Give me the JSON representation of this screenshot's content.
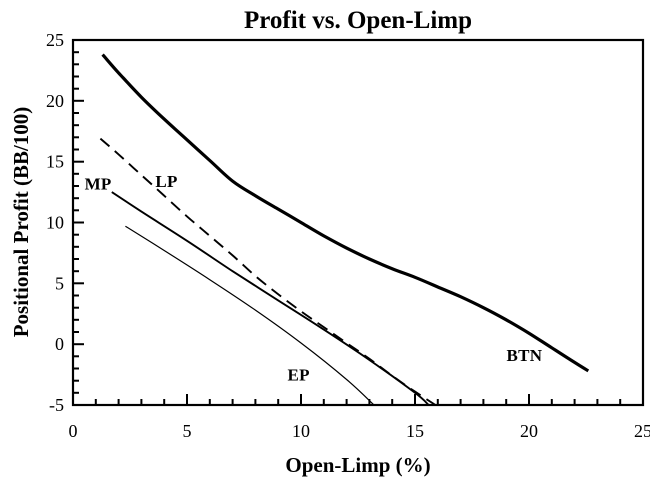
{
  "chart_data": {
    "type": "line",
    "title": "Profit vs. Open-Limp",
    "xlabel": "Open-Limp (%)",
    "ylabel": "Positional Profit (BB/100)",
    "xlim": [
      0,
      25
    ],
    "ylim": [
      -5,
      25
    ],
    "x_major_ticks": [
      0,
      5,
      10,
      15,
      20,
      25
    ],
    "y_major_ticks": [
      -5,
      0,
      5,
      10,
      15,
      20,
      25
    ],
    "minor_tick_step": 1,
    "grid": false,
    "legend": "inline-labels",
    "colors": {
      "line": "#000000",
      "background": "#ffffff"
    },
    "series": [
      {
        "name": "BTN",
        "label": "BTN",
        "style": "solid",
        "width": 3.2,
        "label_pos": [
          19.8,
          -0.9
        ],
        "points": [
          [
            1.3,
            23.8
          ],
          [
            2,
            22.3
          ],
          [
            3,
            20.3
          ],
          [
            4,
            18.5
          ],
          [
            5,
            16.8
          ],
          [
            6,
            15.1
          ],
          [
            7,
            13.4
          ],
          [
            8,
            12.2
          ],
          [
            9,
            11.1
          ],
          [
            10,
            10.0
          ],
          [
            11,
            8.9
          ],
          [
            12,
            7.9
          ],
          [
            13,
            7.0
          ],
          [
            14,
            6.2
          ],
          [
            15,
            5.5
          ],
          [
            16,
            4.7
          ],
          [
            17,
            3.9
          ],
          [
            18,
            3.0
          ],
          [
            19,
            2.0
          ],
          [
            20,
            0.9
          ],
          [
            21,
            -0.3
          ],
          [
            22,
            -1.5
          ],
          [
            22.6,
            -2.2
          ]
        ]
      },
      {
        "name": "LP",
        "label": "LP",
        "style": "dashed",
        "width": 1.9,
        "label_pos": [
          4.1,
          13.4
        ],
        "points": [
          [
            1.2,
            16.9
          ],
          [
            2,
            15.6
          ],
          [
            3,
            13.9
          ],
          [
            4,
            12.2
          ],
          [
            5,
            10.5
          ],
          [
            6,
            8.9
          ],
          [
            7,
            7.3
          ],
          [
            8,
            5.6
          ],
          [
            9,
            4.1
          ],
          [
            10,
            2.7
          ],
          [
            11,
            1.4
          ],
          [
            12,
            0.1
          ],
          [
            13,
            -1.2
          ],
          [
            14,
            -2.6
          ],
          [
            15,
            -3.9
          ],
          [
            15.9,
            -5.0
          ]
        ]
      },
      {
        "name": "MP",
        "label": "MP",
        "style": "solid",
        "width": 1.9,
        "label_pos": [
          1.1,
          13.2
        ],
        "points": [
          [
            1.7,
            12.5
          ],
          [
            3,
            10.9
          ],
          [
            5,
            8.5
          ],
          [
            7,
            6.0
          ],
          [
            9,
            3.6
          ],
          [
            11,
            1.2
          ],
          [
            13,
            -1.3
          ],
          [
            15,
            -4.0
          ],
          [
            15.6,
            -5.0
          ]
        ]
      },
      {
        "name": "EP",
        "label": "EP",
        "style": "solid",
        "width": 1.2,
        "label_pos": [
          9.9,
          -2.5
        ],
        "points": [
          [
            2.3,
            9.7
          ],
          [
            4,
            7.7
          ],
          [
            6,
            5.3
          ],
          [
            8,
            2.8
          ],
          [
            10,
            0.1
          ],
          [
            12,
            -2.9
          ],
          [
            13.2,
            -5.0
          ]
        ]
      }
    ]
  }
}
